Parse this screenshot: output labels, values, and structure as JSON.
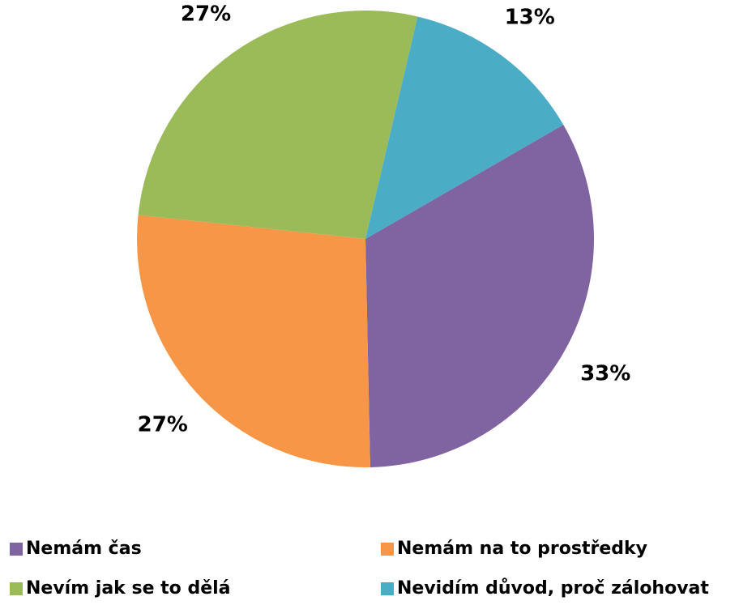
{
  "chart_data": {
    "type": "pie",
    "categories": [
      "Nemám čas",
      "Nemám na to prostředky",
      "Nevím jak se to dělá",
      "Nevidím důvod, proč zálohovat"
    ],
    "values": [
      33,
      27,
      27,
      13
    ],
    "value_labels": [
      "33%",
      "27%",
      "27%",
      "13%"
    ],
    "colors": [
      "#8064a2",
      "#f79646",
      "#9bbb59",
      "#4bacc6"
    ],
    "start_angle": 60,
    "legend": "bottom"
  }
}
